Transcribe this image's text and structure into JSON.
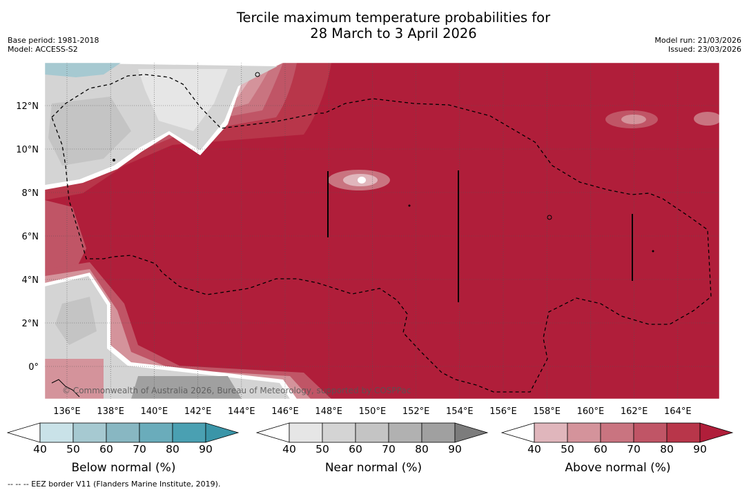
{
  "header": {
    "title_line1": "Tercile maximum temperature probabilities for",
    "title_line2": "28 March to 3 April 2026",
    "base_period": "Base period: 1981-2018",
    "model": "Model: ACCESS-S2",
    "model_run": "Model run: 21/03/2026",
    "issued": "Issued: 23/03/2026"
  },
  "map": {
    "lat_labels": [
      "12°N",
      "10°N",
      "8°N",
      "6°N",
      "4°N",
      "2°N",
      "0°"
    ],
    "lon_labels": [
      "136°E",
      "138°E",
      "140°E",
      "142°E",
      "144°E",
      "146°E",
      "148°E",
      "150°E",
      "152°E",
      "154°E",
      "156°E",
      "158°E",
      "160°E",
      "162°E",
      "164°E"
    ],
    "copyright": "© Commonwealth of Australia 2026, Bureau of Meteorology, supported by COSPPac"
  },
  "colorbars": [
    {
      "label": "Below normal (%)",
      "ticks": [
        "40",
        "50",
        "60",
        "70",
        "80",
        "90"
      ],
      "colors": [
        "#c9e2e8",
        "#a6c9d1",
        "#88b7c2",
        "#6aacbb",
        "#4aa0b2"
      ],
      "extend_color": "#3a95a8"
    },
    {
      "label": "Near normal (%)",
      "ticks": [
        "40",
        "50",
        "60",
        "70",
        "80",
        "90"
      ],
      "colors": [
        "#e6e6e6",
        "#d4d4d4",
        "#c4c4c4",
        "#b1b1b1",
        "#a0a0a0"
      ],
      "extend_color": "#7c7c7c"
    },
    {
      "label": "Above normal (%)",
      "ticks": [
        "40",
        "50",
        "60",
        "70",
        "80",
        "90"
      ],
      "colors": [
        "#e0b6bc",
        "#d4939b",
        "#c97480",
        "#c05566",
        "#b8364a"
      ],
      "extend_color": "#b01e3a"
    }
  ],
  "footer": {
    "eez_note": "--  --  -- EEZ border V11 (Flanders Marine Institute, 2019)."
  }
}
